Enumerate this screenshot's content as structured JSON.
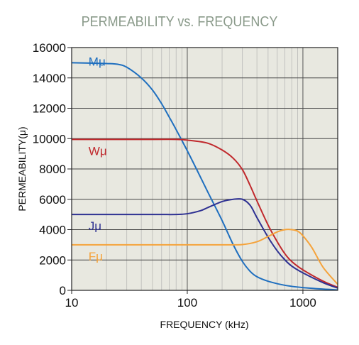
{
  "chart_data": {
    "type": "line",
    "title": "PERMEABILITY vs. FREQUENCY",
    "xlabel": "FREQUENCY (kHz)",
    "ylabel": "PERMEABILITY(μ)",
    "x_scale": "log",
    "xlim": [
      10,
      2000
    ],
    "ylim": [
      0,
      16000
    ],
    "x_ticks": [
      "10",
      "100",
      "1000"
    ],
    "y_ticks": [
      "0",
      "2000",
      "4000",
      "6000",
      "8000",
      "10000",
      "12000",
      "14000",
      "16000"
    ],
    "grid": true,
    "colors": {
      "background": "#e8e8e0",
      "grid": "#aaaaaa",
      "Mμ": "#1f6fbf",
      "Wμ": "#c0282c",
      "Jμ": "#2e3192",
      "Fμ": "#f5a33b"
    },
    "series": [
      {
        "name": "Mμ",
        "x": [
          10,
          20,
          25,
          30,
          40,
          50,
          60,
          70,
          80,
          100,
          120,
          150,
          200,
          250,
          300,
          350,
          400,
          500,
          700,
          1000,
          1500,
          2000
        ],
        "y": [
          15000,
          14950,
          14900,
          14700,
          14000,
          13200,
          12300,
          11400,
          10600,
          9200,
          8000,
          6500,
          4600,
          3000,
          1900,
          1250,
          900,
          600,
          330,
          180,
          80,
          30
        ]
      },
      {
        "name": "Wμ",
        "x": [
          10,
          50,
          80,
          100,
          150,
          200,
          250,
          300,
          350,
          400,
          500,
          600,
          700,
          800,
          1000,
          1500,
          2000
        ],
        "y": [
          9950,
          9950,
          9950,
          9900,
          9700,
          9250,
          8700,
          7950,
          6900,
          5900,
          4300,
          3200,
          2400,
          1900,
          1350,
          600,
          200
        ]
      },
      {
        "name": "Jμ",
        "x": [
          10,
          50,
          80,
          100,
          130,
          150,
          200,
          250,
          300,
          350,
          400,
          500,
          600,
          700,
          800,
          1000,
          1500,
          2000
        ],
        "y": [
          5000,
          5000,
          5000,
          5050,
          5250,
          5450,
          5850,
          6000,
          6000,
          5600,
          4800,
          3500,
          2600,
          2000,
          1600,
          1150,
          500,
          150
        ]
      },
      {
        "name": "Fμ",
        "x": [
          10,
          50,
          100,
          200,
          300,
          400,
          500,
          600,
          700,
          800,
          900,
          1000,
          1200,
          1500,
          2000
        ],
        "y": [
          3000,
          3000,
          3000,
          3000,
          3020,
          3200,
          3550,
          3850,
          4000,
          4000,
          3900,
          3600,
          2800,
          1500,
          400
        ]
      }
    ]
  }
}
